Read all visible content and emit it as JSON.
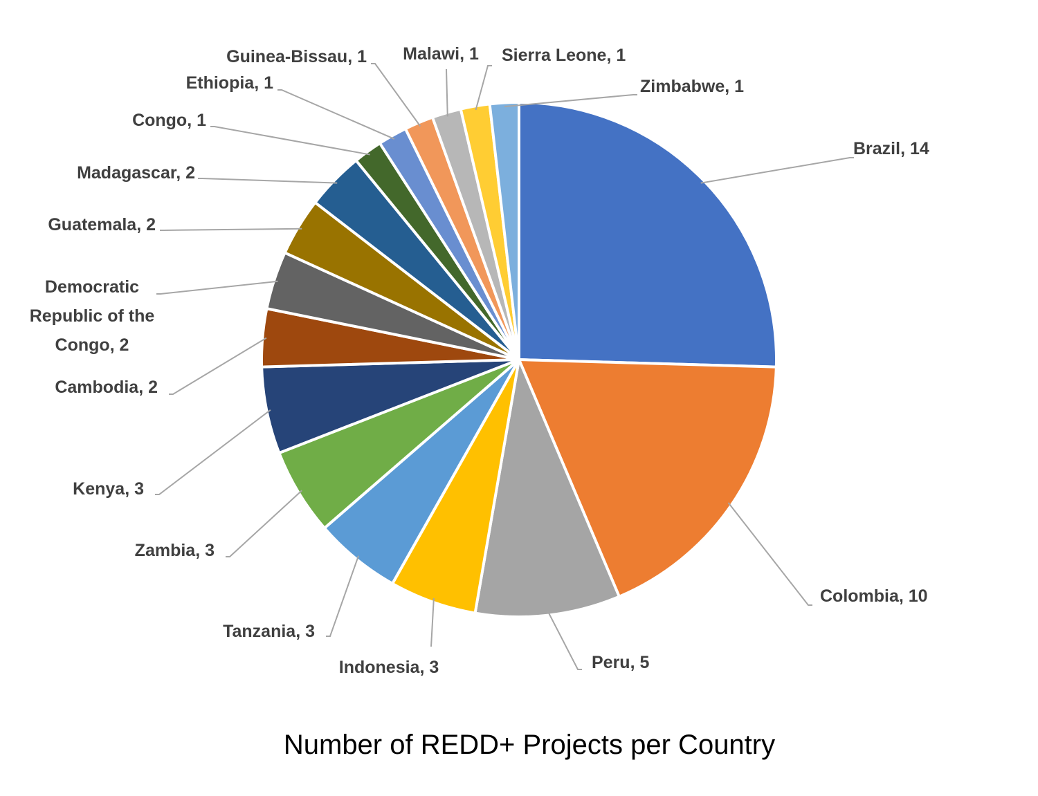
{
  "chart_data": {
    "type": "pie",
    "title": "Number of REDD+ Projects per Country",
    "values": [
      14,
      10,
      5,
      3,
      3,
      3,
      3,
      2,
      2,
      2,
      2,
      1,
      1,
      1,
      1,
      1,
      1
    ],
    "value_labels": [
      "Brazil, 14",
      "Colombia, 10",
      "Peru, 5",
      "Indonesia, 3",
      "Tanzania, 3",
      "Zambia, 3",
      "Kenya, 3",
      "Cambodia, 2",
      "Democratic Republic of the Congo, 2",
      "Guatemala, 2",
      "Madagascar, 2",
      "Congo, 1",
      "Ethiopia, 1",
      "Guinea-Bissau, 1",
      "Malawi, 1",
      "Sierra Leone, 1",
      "Zimbabwe, 1"
    ],
    "colors": [
      "#4472c4",
      "#ed7d31",
      "#a5a5a5",
      "#ffc000",
      "#5b9bd5",
      "#70ad47",
      "#264478",
      "#9e480e",
      "#636363",
      "#997300",
      "#255e91",
      "#43682b",
      "#698ed0",
      "#f1975a",
      "#b7b7b7",
      "#ffcd33",
      "#7cafdd"
    ]
  }
}
